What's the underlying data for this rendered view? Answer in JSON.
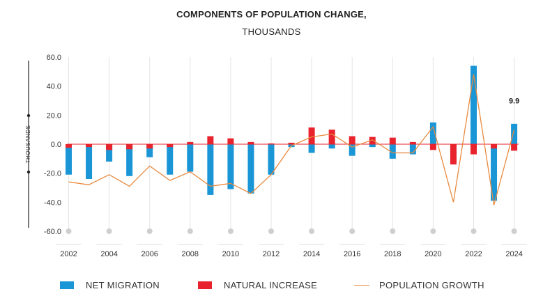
{
  "chart_data": {
    "type": "bar",
    "title": "COMPONENTS OF POPULATION CHANGE,",
    "subtitle": "THOUSANDS",
    "ylabel": "THOUSANDS",
    "ylim": [
      -60,
      60
    ],
    "yticks": [
      "60.0",
      "40.0",
      "20.0",
      "0.0",
      "-20.0",
      "-40.0",
      "-60.0"
    ],
    "yticks_values": [
      60,
      40,
      20,
      0,
      -20,
      -40,
      -60
    ],
    "x": [
      2002,
      2003,
      2004,
      2005,
      2006,
      2007,
      2008,
      2009,
      2010,
      2011,
      2012,
      2013,
      2014,
      2015,
      2016,
      2017,
      2018,
      2019,
      2020,
      2021,
      2022,
      2023,
      2024
    ],
    "xtick_labels": [
      "2002",
      "2004",
      "2006",
      "2008",
      "2010",
      "2012",
      "2014",
      "2016",
      "2018",
      "2020",
      "2022",
      "2024"
    ],
    "xtick_values": [
      2002,
      2004,
      2006,
      2008,
      2010,
      2012,
      2014,
      2016,
      2018,
      2020,
      2022,
      2024
    ],
    "series": [
      {
        "name": "NET MIGRATION",
        "type": "bar",
        "color": "#1a96d6",
        "values": [
          -21,
          -24,
          -12,
          -22,
          -9,
          -21,
          -19,
          -35,
          -31,
          -34,
          -21,
          -2,
          -6,
          -3,
          -8,
          -2,
          -10,
          -7,
          15,
          -12,
          54,
          -39,
          14
        ]
      },
      {
        "name": "NATURAL INCREASE",
        "type": "bar",
        "color": "#e8232d",
        "values": [
          -2.5,
          -2,
          -4,
          -3.5,
          -3,
          -2,
          1.5,
          5.5,
          4,
          1.5,
          0.5,
          1,
          11.5,
          10,
          5.5,
          5,
          4.5,
          1.5,
          -4,
          -14,
          -7,
          -3,
          -4.5
        ]
      },
      {
        "name": "POPULATION GROWTH",
        "type": "line",
        "color": "#e98a3e",
        "values": [
          -26,
          -28,
          -21,
          -29,
          -15,
          -25,
          -19,
          -29,
          -27,
          -34,
          -21,
          -1,
          5,
          7,
          -2,
          3,
          -6,
          -6,
          12,
          -40,
          48,
          -42,
          9.9
        ]
      }
    ],
    "annotations": [
      {
        "x": 2024,
        "y": 9.9,
        "text": "9.9"
      }
    ],
    "legend": "bottom",
    "grid": false
  }
}
